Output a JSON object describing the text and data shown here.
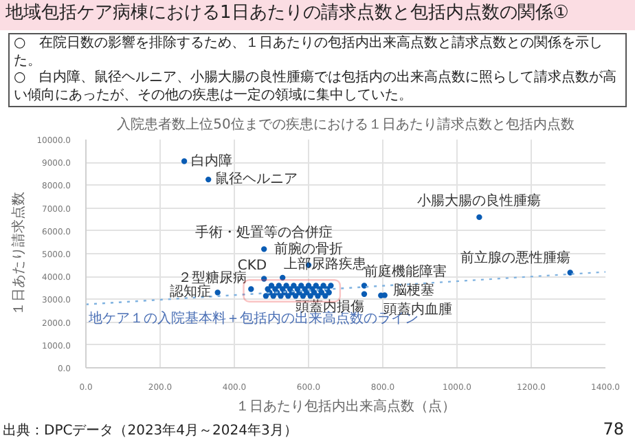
{
  "chart_data": {
    "type": "scatter",
    "title": "地域包括ケア病棟における1日あたりの請求点数と包括内点数の関係①",
    "subtitle": "入院患者数上位50位までの疾患における１日あたり請求点数と包括内点数",
    "xlabel": "１日あたり包括内出来高点数（点）",
    "ylabel": "１日あたり請求点数",
    "annotations": [
      "○　在院日数の影響を排除するため、１日あたりの包括内出来高点数と請求点数との関係を示した。",
      "○　白内障、鼠径ヘルニア、小腸大腸の良性腫瘍では包括内の出来高点数に照らして請求点数が高い傾向にあったが、その他の疾患は一定の領域に集中していた。",
      "出典：DPCデータ（2023年4月～2024年3月）",
      "78",
      {
        "text": "白内障",
        "x": 265,
        "y": 9050
      },
      {
        "text": "鼠径ヘルニア",
        "x": 330,
        "y": 8250
      },
      {
        "text": "手術・処置等の合併症",
        "x": 480,
        "y": 5200
      },
      {
        "text": "前腕の骨折",
        "x": 600,
        "y": 4500
      },
      {
        "text": "CKD",
        "x": 480,
        "y": 3900
      },
      {
        "text": "上部尿路疾患",
        "x": 530,
        "y": 3950
      },
      {
        "text": "２型糖尿病",
        "x": 445,
        "y": 3450
      },
      {
        "text": "認知症",
        "x": 355,
        "y": 3300
      },
      {
        "text": "小腸大腸の良性腫瘍",
        "x": 1060,
        "y": 6600
      },
      {
        "text": "前立腺の悪性腫瘍",
        "x": 1305,
        "y": 4170
      },
      {
        "text": "前庭機能障害",
        "x": 750,
        "y": 3600
      },
      {
        "text": "頭蓋内損傷",
        "x": 750,
        "y": 3230
      },
      {
        "text": "脳梗塞",
        "x": 805,
        "y": 3180
      },
      {
        "text": "頭蓋内血腫",
        "x": 795,
        "y": 3170
      }
    ],
    "series": [
      {
        "color": "#0a5cb4",
        "x": [
          265,
          330,
          480,
          600,
          480,
          530,
          445,
          355,
          1060,
          1305,
          750,
          750,
          805,
          795,
          485,
          490,
          495,
          500,
          505,
          510,
          515,
          520,
          525,
          530,
          535,
          540,
          545,
          550,
          555,
          560,
          565,
          570,
          575,
          580,
          585,
          590,
          595,
          600,
          605,
          610,
          615,
          620,
          625,
          630,
          635,
          640,
          645,
          650,
          655,
          660
        ],
        "values": [
          9050,
          8250,
          5200,
          4500,
          3900,
          3950,
          3450,
          3300,
          6600,
          4170,
          3600,
          3230,
          3180,
          3170,
          3150,
          3450,
          3300,
          3600,
          3150,
          3450,
          3300,
          3600,
          3150,
          3450,
          3300,
          3600,
          3150,
          3450,
          3300,
          3600,
          3150,
          3450,
          3300,
          3600,
          3150,
          3450,
          3300,
          3600,
          3150,
          3450,
          3300,
          3600,
          3150,
          3450,
          3300,
          3600,
          3150,
          3450,
          3300,
          3600
        ]
      },
      {
        "type": "line",
        "name": "地ケア１の入院基本料＋包括内の出来高点数のライン",
        "color": "#7fb2e0",
        "line_style": "dotted",
        "marker": "none",
        "x": [
          0,
          1400
        ],
        "values": [
          2780,
          4200
        ]
      }
    ],
    "xlim": [
      0,
      1400
    ],
    "ylim": [
      0,
      10000
    ],
    "xticks": [
      {
        "value": 0,
        "label": "0.0"
      },
      {
        "value": 200,
        "label": "200.0"
      },
      {
        "value": 400,
        "label": "400.0"
      },
      {
        "value": 600,
        "label": "600.0"
      },
      {
        "value": 800,
        "label": "800.0"
      },
      {
        "value": 1000,
        "label": "1000.0"
      },
      {
        "value": 1200,
        "label": "1200.0"
      },
      {
        "value": 1400,
        "label": "1400.0"
      }
    ],
    "yticks": [
      {
        "value": 0,
        "label": "0.0"
      },
      {
        "value": 1000,
        "label": "1000.0"
      },
      {
        "value": 2000,
        "label": "2000.0"
      },
      {
        "value": 3000,
        "label": "3000.0"
      },
      {
        "value": 4000,
        "label": "4000.0"
      },
      {
        "value": 5000,
        "label": "5000.0"
      },
      {
        "value": 6000,
        "label": "6000.0"
      },
      {
        "value": 7000,
        "label": "7000.0"
      },
      {
        "value": 8000,
        "label": "8000.0"
      },
      {
        "value": 9000,
        "label": "9000.0"
      },
      {
        "value": 10000,
        "label": "10000.0"
      }
    ],
    "grid": true,
    "legend": false,
    "marker": "circle"
  }
}
